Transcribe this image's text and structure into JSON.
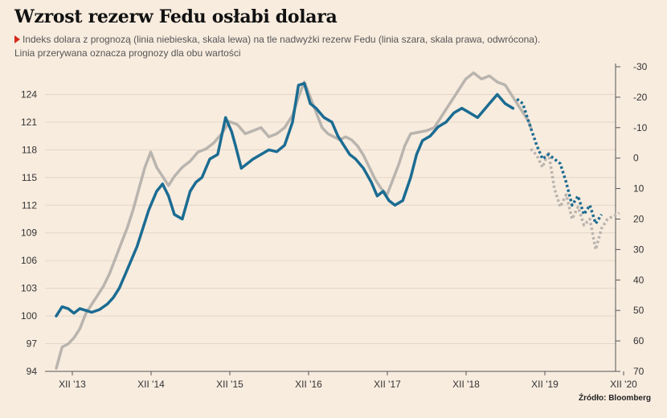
{
  "title": "Wzrost rezerw Fedu osłabi dolara",
  "subtitle_line1": "Indeks dolara z prognozą (linia niebieska, skala lewa) na tle nadwyżki rezerw Fedu (linia szara, skala prawa, odwrócona).",
  "subtitle_line2": "Linia przerywana oznacza prognozy dla obu wartości",
  "source": "Źródło: Bloomberg",
  "colors": {
    "blue": "#1b6c92",
    "gray": "#b9b4ae",
    "background": "#f8ecdf"
  },
  "chart_data": {
    "type": "line",
    "x_ticks": [
      "XII '13",
      "XII '14",
      "XII '15",
      "XII '16",
      "XII '17",
      "XII '18",
      "XII '19",
      "XII '20"
    ],
    "y_left_ticks": [
      94,
      97,
      100,
      103,
      106,
      109,
      112,
      115,
      118,
      121,
      124
    ],
    "y_right_ticks": [
      -30,
      -20,
      -10,
      0,
      10,
      20,
      30,
      40,
      50,
      60,
      70
    ],
    "ylim_left": [
      94,
      127
    ],
    "ylim_right": [
      -30,
      70
    ],
    "right_axis_inverted": true,
    "series": [
      {
        "color": "#1b6c92",
        "axis": "left",
        "actual": [
          [
            0,
            100.0
          ],
          [
            0.15,
            101.0
          ],
          [
            0.3,
            100.8
          ],
          [
            0.45,
            100.3
          ],
          [
            0.6,
            100.8
          ],
          [
            0.75,
            100.6
          ],
          [
            0.9,
            100.4
          ],
          [
            1.1,
            100.7
          ],
          [
            1.3,
            101.3
          ],
          [
            1.45,
            102.0
          ],
          [
            1.6,
            103.0
          ],
          [
            1.75,
            104.5
          ],
          [
            1.9,
            106.0
          ],
          [
            2.05,
            107.5
          ],
          [
            2.2,
            109.5
          ],
          [
            2.35,
            111.5
          ],
          [
            2.55,
            113.5
          ],
          [
            2.7,
            114.3
          ],
          [
            2.85,
            113.0
          ],
          [
            3.0,
            111.0
          ],
          [
            3.2,
            110.5
          ],
          [
            3.4,
            113.5
          ],
          [
            3.55,
            114.5
          ],
          [
            3.7,
            115.0
          ],
          [
            3.9,
            117.0
          ],
          [
            4.1,
            117.5
          ],
          [
            4.2,
            119.5
          ],
          [
            4.3,
            121.5
          ],
          [
            4.45,
            120.0
          ],
          [
            4.55,
            118.5
          ],
          [
            4.7,
            116.0
          ],
          [
            4.85,
            116.5
          ],
          [
            5.0,
            117.0
          ],
          [
            5.2,
            117.5
          ],
          [
            5.4,
            118.0
          ],
          [
            5.6,
            117.8
          ],
          [
            5.8,
            118.5
          ],
          [
            6.0,
            121.0
          ],
          [
            6.15,
            125.0
          ],
          [
            6.3,
            125.2
          ],
          [
            6.45,
            123.0
          ],
          [
            6.6,
            122.5
          ],
          [
            6.8,
            121.5
          ],
          [
            7.0,
            121.0
          ],
          [
            7.15,
            119.5
          ],
          [
            7.3,
            118.5
          ],
          [
            7.45,
            117.5
          ],
          [
            7.6,
            117.0
          ],
          [
            7.8,
            116.0
          ],
          [
            8.0,
            114.5
          ],
          [
            8.15,
            113.0
          ],
          [
            8.3,
            113.5
          ],
          [
            8.45,
            112.5
          ],
          [
            8.6,
            112.0
          ],
          [
            8.8,
            112.5
          ],
          [
            9.0,
            115.0
          ],
          [
            9.15,
            117.5
          ],
          [
            9.3,
            119.0
          ],
          [
            9.5,
            119.5
          ],
          [
            9.7,
            120.5
          ],
          [
            9.9,
            121.0
          ],
          [
            10.1,
            122.0
          ],
          [
            10.3,
            122.5
          ],
          [
            10.5,
            122.0
          ],
          [
            10.7,
            121.5
          ],
          [
            11.0,
            123.0
          ],
          [
            11.2,
            124.0
          ],
          [
            11.4,
            123.0
          ],
          [
            11.6,
            122.5
          ]
        ],
        "forecast": [
          [
            11.7,
            123.5
          ],
          [
            11.85,
            123.0
          ],
          [
            12.0,
            121.0
          ],
          [
            12.2,
            118.5
          ],
          [
            12.35,
            117.0
          ],
          [
            12.5,
            117.5
          ],
          [
            12.65,
            117.0
          ],
          [
            12.8,
            116.5
          ],
          [
            12.95,
            114.5
          ],
          [
            13.1,
            112.0
          ],
          [
            13.25,
            113.0
          ],
          [
            13.4,
            111.0
          ],
          [
            13.55,
            112.0
          ],
          [
            13.7,
            110.0
          ],
          [
            13.85,
            111.0
          ]
        ]
      },
      {
        "color": "#b9b4ae",
        "axis": "right",
        "actual": [
          [
            0,
            69.0
          ],
          [
            0.15,
            62.0
          ],
          [
            0.3,
            61.0
          ],
          [
            0.45,
            59.0
          ],
          [
            0.6,
            56.0
          ],
          [
            0.75,
            51.0
          ],
          [
            0.9,
            48.0
          ],
          [
            1.05,
            45.0
          ],
          [
            1.2,
            42.0
          ],
          [
            1.35,
            38.0
          ],
          [
            1.5,
            33.0
          ],
          [
            1.65,
            28.0
          ],
          [
            1.8,
            23.0
          ],
          [
            1.95,
            17.0
          ],
          [
            2.1,
            10.0
          ],
          [
            2.25,
            3.0
          ],
          [
            2.4,
            -2.0
          ],
          [
            2.55,
            3.0
          ],
          [
            2.7,
            6.0
          ],
          [
            2.85,
            9.0
          ],
          [
            3.0,
            6.0
          ],
          [
            3.2,
            3.0
          ],
          [
            3.4,
            1.0
          ],
          [
            3.6,
            -2.0
          ],
          [
            3.8,
            -3.0
          ],
          [
            4.0,
            -5.0
          ],
          [
            4.2,
            -8.0
          ],
          [
            4.4,
            -12.0
          ],
          [
            4.6,
            -11.0
          ],
          [
            4.8,
            -8.0
          ],
          [
            5.0,
            -9.0
          ],
          [
            5.2,
            -10.0
          ],
          [
            5.4,
            -7.0
          ],
          [
            5.6,
            -8.0
          ],
          [
            5.8,
            -10.0
          ],
          [
            6.0,
            -14.0
          ],
          [
            6.15,
            -20.0
          ],
          [
            6.3,
            -25.0
          ],
          [
            6.45,
            -20.0
          ],
          [
            6.6,
            -15.0
          ],
          [
            6.75,
            -10.0
          ],
          [
            6.9,
            -8.0
          ],
          [
            7.05,
            -7.0
          ],
          [
            7.2,
            -6.0
          ],
          [
            7.35,
            -7.0
          ],
          [
            7.5,
            -6.0
          ],
          [
            7.65,
            -4.0
          ],
          [
            7.8,
            -1.0
          ],
          [
            7.95,
            3.0
          ],
          [
            8.1,
            7.0
          ],
          [
            8.25,
            10.0
          ],
          [
            8.4,
            12.0
          ],
          [
            8.55,
            7.0
          ],
          [
            8.7,
            2.0
          ],
          [
            8.85,
            -4.0
          ],
          [
            9.0,
            -8.0
          ],
          [
            9.2,
            -8.5
          ],
          [
            9.4,
            -9.0
          ],
          [
            9.6,
            -10.0
          ],
          [
            9.8,
            -14.0
          ],
          [
            10.0,
            -18.0
          ],
          [
            10.2,
            -22.0
          ],
          [
            10.4,
            -26.0
          ],
          [
            10.6,
            -28.0
          ],
          [
            10.8,
            -26.0
          ],
          [
            11.0,
            -27.0
          ],
          [
            11.2,
            -25.0
          ],
          [
            11.4,
            -24.0
          ],
          [
            11.6,
            -20.0
          ],
          [
            11.8,
            -16.0
          ],
          [
            12.0,
            -12.0
          ],
          [
            12.05,
            -10.0
          ]
        ],
        "forecast": [
          [
            12.05,
            -3.0
          ],
          [
            12.2,
            -1.0
          ],
          [
            12.35,
            3.0
          ],
          [
            12.5,
            -2.0
          ],
          [
            12.65,
            10.0
          ],
          [
            12.8,
            16.0
          ],
          [
            12.95,
            12.0
          ],
          [
            13.1,
            20.0
          ],
          [
            13.25,
            16.0
          ],
          [
            13.4,
            22.0
          ],
          [
            13.55,
            20.0
          ],
          [
            13.7,
            30.0
          ],
          [
            13.85,
            23.0
          ],
          [
            14.0,
            20.0
          ],
          [
            14.15,
            19.0
          ],
          [
            14.3,
            18.0
          ]
        ]
      }
    ]
  }
}
